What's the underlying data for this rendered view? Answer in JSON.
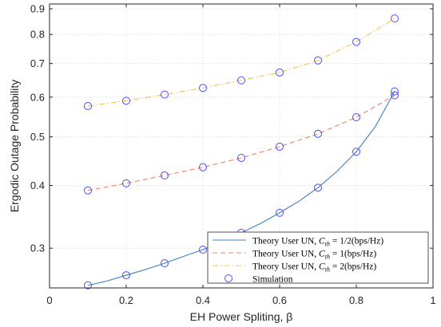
{
  "chart_data": {
    "type": "line",
    "title": "",
    "xlabel": "EH Power Spliting, β",
    "ylabel": "Ergodic Outage Probability",
    "xlim": [
      0,
      1
    ],
    "ylim": [
      0.25,
      0.92
    ],
    "yscale": "log",
    "grid": true,
    "legend_position": "bottom-right",
    "x_ticks": [
      "0",
      "0.2",
      "0.4",
      "0.6",
      "0.8",
      "1"
    ],
    "y_ticks": [
      "0.3",
      "0.4",
      "0.5",
      "0.6",
      "0.7",
      "0.8",
      "0.9"
    ],
    "series": [
      {
        "name": "Theory User UN, C_th = 1/2(bps/Hz)",
        "style": "solid",
        "color": "#3a82c4",
        "x": [
          0.1,
          0.15,
          0.2,
          0.25,
          0.3,
          0.35,
          0.4,
          0.45,
          0.5,
          0.55,
          0.6,
          0.65,
          0.7,
          0.75,
          0.8,
          0.85,
          0.9
        ],
        "y": [
          0.253,
          0.258,
          0.265,
          0.272,
          0.28,
          0.289,
          0.298,
          0.309,
          0.322,
          0.336,
          0.353,
          0.372,
          0.396,
          0.427,
          0.467,
          0.525,
          0.616
        ]
      },
      {
        "name": "Theory User UN, C_th = 1(bps/Hz)",
        "style": "dashed",
        "color": "#e8836a",
        "x": [
          0.1,
          0.2,
          0.3,
          0.4,
          0.5,
          0.6,
          0.7,
          0.8,
          0.9
        ],
        "y": [
          0.391,
          0.404,
          0.419,
          0.435,
          0.454,
          0.478,
          0.507,
          0.547,
          0.605
        ]
      },
      {
        "name": "Theory User UN, C_th = 2(bps/Hz)",
        "style": "dashdot",
        "color": "#f0c060",
        "x": [
          0.1,
          0.2,
          0.3,
          0.4,
          0.5,
          0.6,
          0.7,
          0.8,
          0.9
        ],
        "y": [
          0.576,
          0.59,
          0.607,
          0.626,
          0.648,
          0.672,
          0.71,
          0.773,
          0.861
        ]
      },
      {
        "name": "Simulation",
        "style": "marker",
        "marker": "circle",
        "color": "#4d4dff",
        "points": [
          [
            0.1,
            0.253
          ],
          [
            0.2,
            0.265
          ],
          [
            0.3,
            0.28
          ],
          [
            0.4,
            0.298
          ],
          [
            0.5,
            0.322
          ],
          [
            0.6,
            0.353
          ],
          [
            0.7,
            0.396
          ],
          [
            0.8,
            0.467
          ],
          [
            0.9,
            0.616
          ],
          [
            0.1,
            0.391
          ],
          [
            0.2,
            0.404
          ],
          [
            0.3,
            0.419
          ],
          [
            0.4,
            0.435
          ],
          [
            0.5,
            0.454
          ],
          [
            0.6,
            0.478
          ],
          [
            0.7,
            0.507
          ],
          [
            0.8,
            0.547
          ],
          [
            0.9,
            0.605
          ],
          [
            0.1,
            0.576
          ],
          [
            0.2,
            0.59
          ],
          [
            0.3,
            0.607
          ],
          [
            0.4,
            0.626
          ],
          [
            0.5,
            0.648
          ],
          [
            0.6,
            0.672
          ],
          [
            0.7,
            0.71
          ],
          [
            0.8,
            0.773
          ],
          [
            0.9,
            0.861
          ]
        ]
      }
    ]
  },
  "legend": [
    {
      "prefix": "Theory User UN, ",
      "c": "C",
      "sub": "th",
      "suffix": " = 1/2(bps/Hz)"
    },
    {
      "prefix": "Theory User UN, ",
      "c": "C",
      "sub": "th",
      "suffix": " = 1(bps/Hz)"
    },
    {
      "prefix": "Theory User UN, ",
      "c": "C",
      "sub": "th",
      "suffix": " = 2(bps/Hz)"
    },
    {
      "prefix": "Simulation",
      "c": "",
      "sub": "",
      "suffix": ""
    }
  ]
}
